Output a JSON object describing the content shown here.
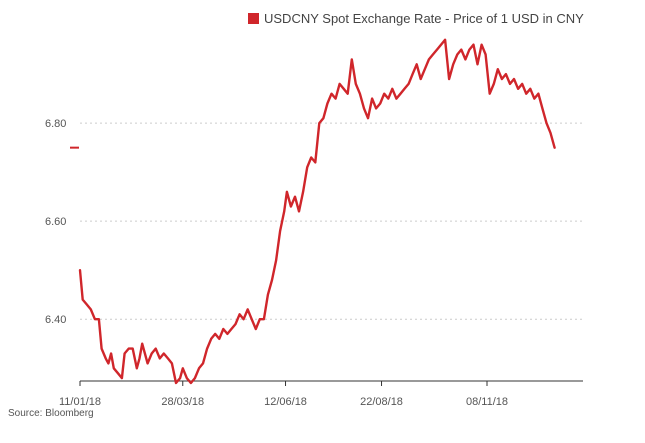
{
  "chart_data": {
    "type": "line",
    "title": "",
    "xlabel": "",
    "ylabel": "",
    "legend": {
      "label": "USDCNY Spot Exchange Rate - Price of 1 USD in CNY",
      "placement": "top-right"
    },
    "source": "Source: Bloomberg",
    "ylim": [
      6.274,
      6.99
    ],
    "yticks": [
      6.4,
      6.6,
      6.8
    ],
    "ytick_labels": [
      "6.40",
      "6.60",
      "6.80"
    ],
    "xticks": [
      "2018-01-11",
      "2018-03-28",
      "2018-06-12",
      "2018-08-22",
      "2018-11-08"
    ],
    "xtick_labels": [
      "11/01/18",
      "28/03/18",
      "12/06/18",
      "22/08/18",
      "08/11/18"
    ],
    "xlim": [
      "2018-01-11",
      "2019-01-18"
    ],
    "grid": {
      "horizontal": true,
      "style": "dotted"
    },
    "marker_level": 6.75,
    "colors": {
      "line": "#d0262b",
      "grid": "#cccccc",
      "axis": "#333333"
    },
    "series": [
      {
        "name": "USDCNY Spot Exchange Rate - Price of 1 USD in CNY",
        "points": [
          [
            "2018-01-11",
            6.5
          ],
          [
            "2018-01-13",
            6.44
          ],
          [
            "2018-01-16",
            6.43
          ],
          [
            "2018-01-19",
            6.42
          ],
          [
            "2018-01-22",
            6.4
          ],
          [
            "2018-01-25",
            6.4
          ],
          [
            "2018-01-27",
            6.34
          ],
          [
            "2018-01-30",
            6.32
          ],
          [
            "2018-02-01",
            6.31
          ],
          [
            "2018-02-03",
            6.33
          ],
          [
            "2018-02-05",
            6.3
          ],
          [
            "2018-02-08",
            6.29
          ],
          [
            "2018-02-11",
            6.28
          ],
          [
            "2018-02-13",
            6.33
          ],
          [
            "2018-02-16",
            6.34
          ],
          [
            "2018-02-19",
            6.34
          ],
          [
            "2018-02-22",
            6.3
          ],
          [
            "2018-02-24",
            6.32
          ],
          [
            "2018-02-26",
            6.35
          ],
          [
            "2018-02-28",
            6.33
          ],
          [
            "2018-03-02",
            6.31
          ],
          [
            "2018-03-05",
            6.33
          ],
          [
            "2018-03-08",
            6.34
          ],
          [
            "2018-03-11",
            6.32
          ],
          [
            "2018-03-14",
            6.33
          ],
          [
            "2018-03-17",
            6.32
          ],
          [
            "2018-03-20",
            6.31
          ],
          [
            "2018-03-23",
            6.27
          ],
          [
            "2018-03-26",
            6.28
          ],
          [
            "2018-03-28",
            6.3
          ],
          [
            "2018-03-31",
            6.28
          ],
          [
            "2018-04-03",
            6.27
          ],
          [
            "2018-04-06",
            6.28
          ],
          [
            "2018-04-09",
            6.3
          ],
          [
            "2018-04-12",
            6.31
          ],
          [
            "2018-04-15",
            6.34
          ],
          [
            "2018-04-18",
            6.36
          ],
          [
            "2018-04-21",
            6.37
          ],
          [
            "2018-04-24",
            6.36
          ],
          [
            "2018-04-27",
            6.38
          ],
          [
            "2018-04-30",
            6.37
          ],
          [
            "2018-05-03",
            6.38
          ],
          [
            "2018-05-06",
            6.39
          ],
          [
            "2018-05-09",
            6.41
          ],
          [
            "2018-05-12",
            6.4
          ],
          [
            "2018-05-15",
            6.42
          ],
          [
            "2018-05-18",
            6.4
          ],
          [
            "2018-05-21",
            6.38
          ],
          [
            "2018-05-24",
            6.4
          ],
          [
            "2018-05-27",
            6.4
          ],
          [
            "2018-05-30",
            6.45
          ],
          [
            "2018-06-02",
            6.48
          ],
          [
            "2018-06-05",
            6.52
          ],
          [
            "2018-06-08",
            6.58
          ],
          [
            "2018-06-11",
            6.62
          ],
          [
            "2018-06-13",
            6.66
          ],
          [
            "2018-06-16",
            6.63
          ],
          [
            "2018-06-19",
            6.65
          ],
          [
            "2018-06-22",
            6.62
          ],
          [
            "2018-06-25",
            6.66
          ],
          [
            "2018-06-28",
            6.71
          ],
          [
            "2018-07-01",
            6.73
          ],
          [
            "2018-07-04",
            6.72
          ],
          [
            "2018-07-07",
            6.8
          ],
          [
            "2018-07-10",
            6.81
          ],
          [
            "2018-07-13",
            6.84
          ],
          [
            "2018-07-16",
            6.86
          ],
          [
            "2018-07-19",
            6.85
          ],
          [
            "2018-07-22",
            6.88
          ],
          [
            "2018-07-25",
            6.87
          ],
          [
            "2018-07-28",
            6.86
          ],
          [
            "2018-07-31",
            6.93
          ],
          [
            "2018-08-03",
            6.88
          ],
          [
            "2018-08-06",
            6.86
          ],
          [
            "2018-08-09",
            6.83
          ],
          [
            "2018-08-12",
            6.81
          ],
          [
            "2018-08-15",
            6.85
          ],
          [
            "2018-08-18",
            6.83
          ],
          [
            "2018-08-21",
            6.84
          ],
          [
            "2018-08-24",
            6.86
          ],
          [
            "2018-08-27",
            6.85
          ],
          [
            "2018-08-30",
            6.87
          ],
          [
            "2018-09-02",
            6.85
          ],
          [
            "2018-09-05",
            6.86
          ],
          [
            "2018-09-08",
            6.87
          ],
          [
            "2018-09-11",
            6.88
          ],
          [
            "2018-09-14",
            6.9
          ],
          [
            "2018-09-17",
            6.92
          ],
          [
            "2018-09-20",
            6.89
          ],
          [
            "2018-09-23",
            6.91
          ],
          [
            "2018-09-26",
            6.93
          ],
          [
            "2018-09-29",
            6.94
          ],
          [
            "2018-10-02",
            6.95
          ],
          [
            "2018-10-05",
            6.96
          ],
          [
            "2018-10-08",
            6.97
          ],
          [
            "2018-10-11",
            6.89
          ],
          [
            "2018-10-14",
            6.92
          ],
          [
            "2018-10-17",
            6.94
          ],
          [
            "2018-10-20",
            6.95
          ],
          [
            "2018-10-23",
            6.93
          ],
          [
            "2018-10-26",
            6.95
          ],
          [
            "2018-10-29",
            6.96
          ],
          [
            "2018-11-01",
            6.92
          ],
          [
            "2018-11-04",
            6.96
          ],
          [
            "2018-11-07",
            6.94
          ],
          [
            "2018-11-10",
            6.86
          ],
          [
            "2018-11-13",
            6.88
          ],
          [
            "2018-11-16",
            6.91
          ],
          [
            "2018-11-19",
            6.89
          ],
          [
            "2018-11-22",
            6.9
          ],
          [
            "2018-11-25",
            6.88
          ],
          [
            "2018-11-28",
            6.89
          ],
          [
            "2018-12-01",
            6.87
          ],
          [
            "2018-12-04",
            6.88
          ],
          [
            "2018-12-07",
            6.86
          ],
          [
            "2018-12-10",
            6.87
          ],
          [
            "2018-12-13",
            6.85
          ],
          [
            "2018-12-16",
            6.86
          ],
          [
            "2018-12-19",
            6.83
          ],
          [
            "2018-12-22",
            6.8
          ],
          [
            "2018-12-25",
            6.78
          ],
          [
            "2018-12-28",
            6.75
          ]
        ]
      }
    ]
  }
}
